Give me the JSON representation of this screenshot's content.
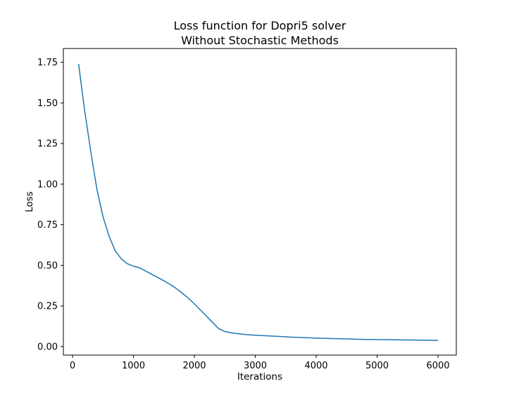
{
  "chart_data": {
    "type": "line",
    "title": [
      "Loss function for Dopri5 solver",
      "Without Stochastic Methods"
    ],
    "xlabel": "Iterations",
    "ylabel": "Loss",
    "xlim": [
      -150,
      6300
    ],
    "ylim": [
      -0.0525,
      1.835
    ],
    "xticks": [
      0,
      1000,
      2000,
      3000,
      4000,
      5000,
      6000
    ],
    "yticks": [
      0.0,
      0.25,
      0.5,
      0.75,
      1.0,
      1.25,
      1.5,
      1.75
    ],
    "ytick_labels": [
      "0.00",
      "0.25",
      "0.50",
      "0.75",
      "1.00",
      "1.25",
      "1.50",
      "1.75"
    ],
    "grid": false,
    "series_color": "#1f77b4",
    "series": [
      {
        "x": [
          100,
          200,
          300,
          400,
          500,
          600,
          700,
          800,
          900,
          1000,
          1100,
          1200,
          1300,
          1400,
          1500,
          1600,
          1700,
          1800,
          1900,
          2000,
          2100,
          2200,
          2300,
          2400,
          2500,
          2600,
          2700,
          2800,
          2900,
          3000,
          3200,
          3400,
          3600,
          3800,
          4000,
          4200,
          4400,
          4600,
          4800,
          5000,
          5200,
          5400,
          5600,
          5800,
          6000
        ],
        "y": [
          1.74,
          1.45,
          1.2,
          0.97,
          0.8,
          0.68,
          0.59,
          0.54,
          0.51,
          0.495,
          0.485,
          0.465,
          0.445,
          0.425,
          0.405,
          0.383,
          0.358,
          0.33,
          0.298,
          0.263,
          0.225,
          0.187,
          0.148,
          0.11,
          0.093,
          0.085,
          0.08,
          0.076,
          0.072,
          0.07,
          0.066,
          0.062,
          0.058,
          0.055,
          0.052,
          0.05,
          0.048,
          0.046,
          0.044,
          0.043,
          0.042,
          0.041,
          0.04,
          0.039,
          0.038
        ]
      }
    ]
  }
}
